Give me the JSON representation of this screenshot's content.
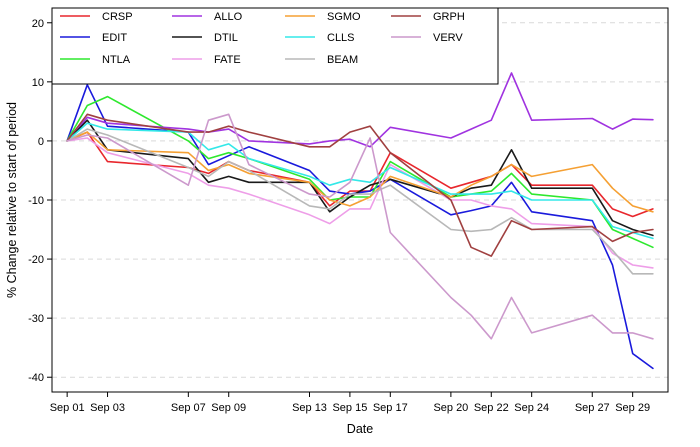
{
  "chart_data": {
    "type": "line",
    "xlabel": "Date",
    "ylabel": "% Change relative to start of period",
    "ylim": [
      -40,
      20
    ],
    "yticks": [
      20,
      10,
      0,
      -10,
      -20,
      -30,
      -40
    ],
    "x": [
      1,
      2,
      3,
      7,
      8,
      9,
      10,
      13,
      14,
      15,
      16,
      17,
      20,
      21,
      22,
      23,
      24,
      27,
      28,
      29,
      30
    ],
    "xtick_values": [
      1,
      3,
      7,
      9,
      13,
      15,
      17,
      20,
      22,
      24,
      27,
      29
    ],
    "xtick_labels": [
      "Sep 01",
      "Sep 03",
      "Sep 07",
      "Sep 09",
      "Sep 13",
      "Sep 15",
      "Sep 17",
      "Sep 20",
      "Sep 22",
      "Sep 24",
      "Sep 27",
      "Sep 29"
    ],
    "grid": true,
    "legend_placement": "top-left",
    "series": [
      {
        "name": "CRSP",
        "color": "#e8272d",
        "values": [
          0,
          1.5,
          -3.5,
          -4.5,
          -5.5,
          -3.5,
          -5,
          -7,
          -11,
          -8.5,
          -8.5,
          -2,
          -8,
          -7,
          -6,
          -4,
          -7.5,
          -7.5,
          -11.5,
          -12.8,
          -11.5
        ]
      },
      {
        "name": "EDIT",
        "color": "#1a1adc",
        "values": [
          0,
          9.5,
          2.5,
          1.5,
          -4,
          -2.5,
          -1,
          -5,
          -8.5,
          -9,
          -8.5,
          -6.5,
          -12.5,
          -11.8,
          -11,
          -7,
          -12,
          -13.5,
          -21,
          -36,
          -38.5
        ]
      },
      {
        "name": "NTLA",
        "color": "#2ee82e",
        "values": [
          0,
          6,
          7.5,
          0,
          -3,
          -2,
          -3,
          -6.5,
          -10,
          -9.5,
          -9.5,
          -3.5,
          -9.5,
          -9,
          -8.5,
          -5.5,
          -9,
          -10,
          -15,
          -16.5,
          -18
        ]
      },
      {
        "name": "ALLO",
        "color": "#a033e0",
        "values": [
          0,
          4,
          3,
          2,
          1.5,
          2,
          0,
          -0.5,
          0,
          0.3,
          -1,
          2.3,
          0.5,
          2,
          3.5,
          11.5,
          3.5,
          3.8,
          2,
          3.7,
          3.6
        ]
      },
      {
        "name": "DTIL",
        "color": "#1a1a1a",
        "values": [
          0,
          3.5,
          -1.5,
          -3,
          -7,
          -6,
          -7,
          -7,
          -12,
          -9.5,
          -7.5,
          -6.5,
          -9.5,
          -8,
          -7.5,
          -1.5,
          -8,
          -8,
          -13.5,
          -15,
          -16
        ]
      },
      {
        "name": "FATE",
        "color": "#ee9ee8",
        "values": [
          0,
          0.5,
          -2,
          -5.5,
          -7.5,
          -8,
          -9,
          -12.5,
          -14,
          -11.5,
          -11.5,
          -4,
          -10,
          -10,
          -11,
          -11.5,
          -14,
          -14.5,
          -19,
          -21,
          -21.5
        ]
      },
      {
        "name": "SGMO",
        "color": "#f5a033",
        "values": [
          0,
          1.5,
          -1.5,
          -2,
          -5,
          -4,
          -5.5,
          -7,
          -10,
          -11,
          -9.5,
          -6,
          -9.5,
          -7.5,
          -6,
          -4,
          -6,
          -4,
          -8,
          -11,
          -12
        ]
      },
      {
        "name": "CLLS",
        "color": "#33e8e8",
        "values": [
          0,
          3,
          2,
          1.5,
          -1.5,
          -0.5,
          -3,
          -6,
          -7.5,
          -6.5,
          -7,
          -4.5,
          -9,
          -9,
          -9,
          -8.5,
          -10,
          -10,
          -14.5,
          -15.5,
          -16.5
        ]
      },
      {
        "name": "BEAM",
        "color": "#b8b8b8",
        "values": [
          0,
          2,
          1,
          -4.5,
          -6,
          -3.5,
          -5,
          -11,
          -11.5,
          -9,
          -9,
          -7.5,
          -15,
          -15.3,
          -15,
          -13,
          -15,
          -15,
          -18.5,
          -22.5,
          -22.5
        ]
      },
      {
        "name": "GRPH",
        "color": "#a04040",
        "values": [
          0,
          4.5,
          3.5,
          1.5,
          1.5,
          2.5,
          1.5,
          -1,
          -1,
          1.5,
          2.5,
          -2,
          -10,
          -18,
          -19.5,
          -13.5,
          -15,
          -14.5,
          -17,
          -15.5,
          -15
        ]
      },
      {
        "name": "VERV",
        "color": "#cc99cc",
        "values": [
          0,
          1,
          0.5,
          -7.5,
          3.5,
          4.5,
          -4,
          -9,
          -9.5,
          -7,
          0.5,
          -15.5,
          -26.5,
          -29.5,
          -33.5,
          -26.5,
          -32.5,
          -29.5,
          -32.5,
          -32.5,
          -33.5
        ]
      }
    ]
  }
}
